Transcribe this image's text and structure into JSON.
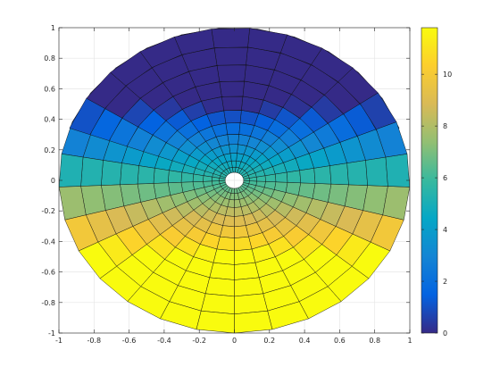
{
  "chart_data": {
    "type": "surface",
    "view": "2d-top",
    "title": "",
    "xlabel": "",
    "ylabel": "",
    "xlim": [
      -1,
      1
    ],
    "ylim": [
      -1,
      1
    ],
    "xticks": [
      -1,
      -0.8,
      -0.6,
      -0.4,
      -0.2,
      0,
      0.2,
      0.4,
      0.6,
      0.8,
      1
    ],
    "xtick_labels": [
      "-1",
      "-0.8",
      "-0.6",
      "-0.4",
      "-0.2",
      "0",
      "0.2",
      "0.4",
      "0.6",
      "0.8",
      "1"
    ],
    "yticks": [
      -1,
      -0.8,
      -0.6,
      -0.4,
      -0.2,
      0,
      0.2,
      0.4,
      0.6,
      0.8,
      1
    ],
    "ytick_labels": [
      "-1",
      "-0.8",
      "-0.6",
      "-0.4",
      "-0.2",
      "0",
      "0.2",
      "0.4",
      "0.6",
      "0.8",
      "1"
    ],
    "grid": true,
    "surface": {
      "mesh": "polar-conformal",
      "radial_range": [
        0.23,
        1.0
      ],
      "angle_range_deg": [
        -35,
        215
      ],
      "radial_cells": 12,
      "angular_cells": 40,
      "color_range": [
        0,
        11.8
      ]
    },
    "colormap": "parula",
    "colormap_stops": [
      "#352a87",
      "#0363e1",
      "#1485d4",
      "#06a7c6",
      "#38b99e",
      "#92bf73",
      "#d9ba56",
      "#fcce2e",
      "#f9fb0e"
    ],
    "colorbar": {
      "position": "right",
      "range": [
        0,
        11.8
      ],
      "ticks": [
        0,
        2,
        4,
        6,
        8,
        10
      ],
      "tick_labels": [
        "0",
        "2",
        "4",
        "6",
        "8",
        "10"
      ]
    }
  }
}
